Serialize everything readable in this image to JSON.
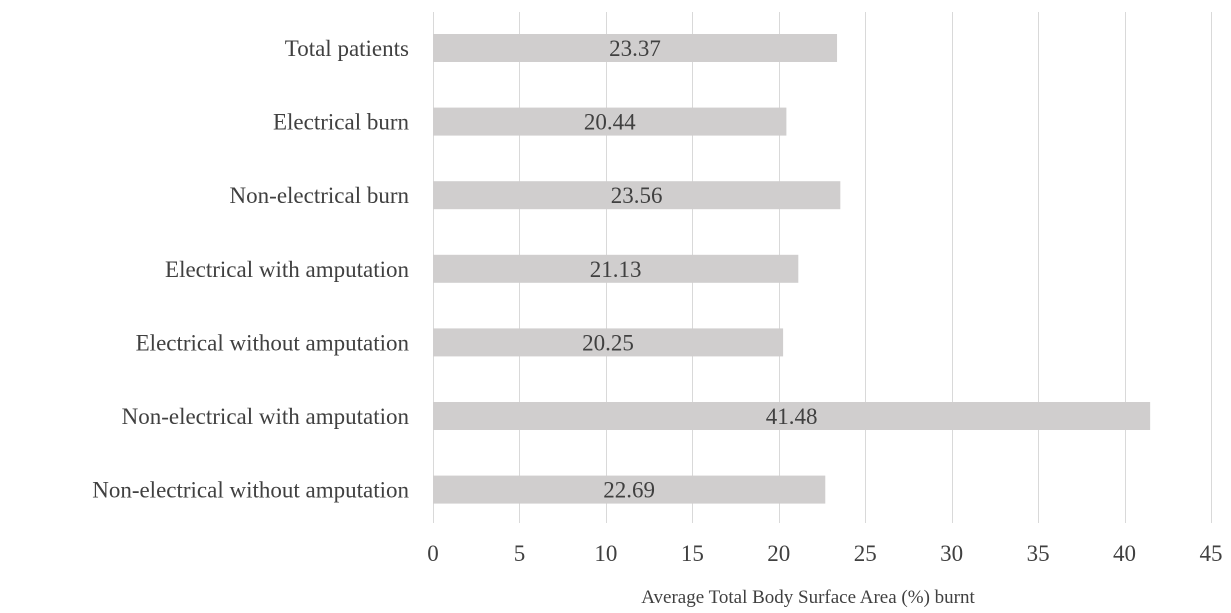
{
  "chart_data": {
    "type": "bar",
    "orientation": "horizontal",
    "categories": [
      "Total patients",
      "Electrical burn",
      "Non-electrical burn",
      "Electrical with amputation",
      "Electrical without amputation",
      "Non-electrical with amputation",
      "Non-electrical without amputation"
    ],
    "values": [
      23.37,
      20.44,
      23.56,
      21.13,
      20.25,
      41.48,
      22.69
    ],
    "data_labels": [
      "23.37",
      "20.44",
      "23.56",
      "21.13",
      "20.25",
      "41.48",
      "22.69"
    ],
    "xlabel": "Average Total Body Surface Area (%) burnt",
    "xlim": [
      0,
      45
    ],
    "xticks": [
      0,
      5,
      10,
      15,
      20,
      25,
      30,
      35,
      40,
      45
    ],
    "xtick_labels": [
      "0",
      "5",
      "10",
      "15",
      "20",
      "25",
      "30",
      "35",
      "40",
      "45"
    ],
    "grid": "vertical",
    "legend": "none",
    "bar_color": "#d0cece",
    "grid_color": "#d9d9d9",
    "text_color": "#404040"
  }
}
